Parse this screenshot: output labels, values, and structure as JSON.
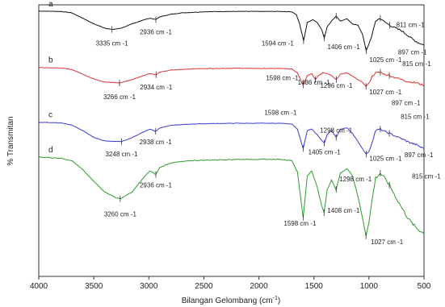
{
  "chart_data": {
    "type": "line",
    "title": "",
    "xlabel": "Bilangan Gelombang (cm",
    "xlabel_sup": "-1",
    "xlabel_close": ")",
    "ylabel": "% Transmitan",
    "xlim": [
      4000,
      500
    ],
    "x_reversed": true,
    "x_ticks": [
      4000,
      3500,
      3000,
      2500,
      2000,
      1500,
      1000,
      500
    ],
    "y_ticks_shown": false,
    "grid": false,
    "legend": "none",
    "series": [
      {
        "label": "a",
        "color": "#111111",
        "points": [
          [
            4000,
            0.98
          ],
          [
            3800,
            0.975
          ],
          [
            3700,
            0.955
          ],
          [
            3600,
            0.88
          ],
          [
            3500,
            0.8
          ],
          [
            3400,
            0.74
          ],
          [
            3335,
            0.72
          ],
          [
            3250,
            0.74
          ],
          [
            3150,
            0.8
          ],
          [
            3050,
            0.855
          ],
          [
            2990,
            0.88
          ],
          [
            2936,
            0.86
          ],
          [
            2900,
            0.9
          ],
          [
            2800,
            0.935
          ],
          [
            2700,
            0.955
          ],
          [
            2500,
            0.97
          ],
          [
            2300,
            0.975
          ],
          [
            2100,
            0.975
          ],
          [
            2000,
            0.975
          ],
          [
            1900,
            0.975
          ],
          [
            1800,
            0.975
          ],
          [
            1700,
            0.97
          ],
          [
            1660,
            0.93
          ],
          [
            1630,
            0.8
          ],
          [
            1594,
            0.56
          ],
          [
            1560,
            0.82
          ],
          [
            1510,
            0.86
          ],
          [
            1470,
            0.82
          ],
          [
            1430,
            0.72
          ],
          [
            1406,
            0.6
          ],
          [
            1380,
            0.76
          ],
          [
            1340,
            0.84
          ],
          [
            1298,
            0.91
          ],
          [
            1260,
            0.84
          ],
          [
            1200,
            0.87
          ],
          [
            1150,
            0.8
          ],
          [
            1100,
            0.78
          ],
          [
            1060,
            0.66
          ],
          [
            1025,
            0.42
          ],
          [
            1000,
            0.52
          ],
          [
            970,
            0.65
          ],
          [
            940,
            0.84
          ],
          [
            897,
            0.88
          ],
          [
            870,
            0.84
          ],
          [
            811,
            0.78
          ],
          [
            760,
            0.74
          ],
          [
            700,
            0.7
          ],
          [
            650,
            0.64
          ],
          [
            600,
            0.58
          ],
          [
            560,
            0.54
          ],
          [
            530,
            0.52
          ],
          [
            500,
            0.5
          ]
        ]
      },
      {
        "label": "b",
        "color": "#e03030",
        "points": [
          [
            4000,
            0.98
          ],
          [
            3800,
            0.97
          ],
          [
            3700,
            0.95
          ],
          [
            3600,
            0.88
          ],
          [
            3500,
            0.81
          ],
          [
            3400,
            0.765
          ],
          [
            3266,
            0.75
          ],
          [
            3150,
            0.8
          ],
          [
            3050,
            0.86
          ],
          [
            2990,
            0.89
          ],
          [
            2934,
            0.87
          ],
          [
            2900,
            0.91
          ],
          [
            2800,
            0.94
          ],
          [
            2600,
            0.96
          ],
          [
            2400,
            0.965
          ],
          [
            2200,
            0.968
          ],
          [
            2000,
            0.965
          ],
          [
            1800,
            0.965
          ],
          [
            1700,
            0.955
          ],
          [
            1650,
            0.9
          ],
          [
            1598,
            0.72
          ],
          [
            1560,
            0.86
          ],
          [
            1520,
            0.89
          ],
          [
            1486,
            0.8
          ],
          [
            1460,
            0.86
          ],
          [
            1420,
            0.9
          ],
          [
            1380,
            0.89
          ],
          [
            1340,
            0.86
          ],
          [
            1296,
            0.8
          ],
          [
            1260,
            0.88
          ],
          [
            1200,
            0.9
          ],
          [
            1150,
            0.85
          ],
          [
            1100,
            0.8
          ],
          [
            1060,
            0.76
          ],
          [
            1027,
            0.7
          ],
          [
            1000,
            0.75
          ],
          [
            970,
            0.85
          ],
          [
            940,
            0.9
          ],
          [
            897,
            0.91
          ],
          [
            860,
            0.88
          ],
          [
            815,
            0.86
          ],
          [
            760,
            0.83
          ],
          [
            700,
            0.8
          ],
          [
            650,
            0.77
          ],
          [
            600,
            0.76
          ],
          [
            560,
            0.75
          ],
          [
            530,
            0.73
          ],
          [
            500,
            0.72
          ]
        ]
      },
      {
        "label": "c",
        "color": "#3a3ad0",
        "points": [
          [
            4000,
            0.98
          ],
          [
            3800,
            0.97
          ],
          [
            3700,
            0.94
          ],
          [
            3600,
            0.86
          ],
          [
            3500,
            0.76
          ],
          [
            3400,
            0.71
          ],
          [
            3248,
            0.7
          ],
          [
            3150,
            0.76
          ],
          [
            3050,
            0.84
          ],
          [
            2990,
            0.88
          ],
          [
            2938,
            0.85
          ],
          [
            2900,
            0.9
          ],
          [
            2800,
            0.935
          ],
          [
            2600,
            0.955
          ],
          [
            2400,
            0.962
          ],
          [
            2200,
            0.965
          ],
          [
            2000,
            0.965
          ],
          [
            1800,
            0.965
          ],
          [
            1700,
            0.955
          ],
          [
            1650,
            0.88
          ],
          [
            1598,
            0.6
          ],
          [
            1560,
            0.86
          ],
          [
            1520,
            0.88
          ],
          [
            1470,
            0.8
          ],
          [
            1430,
            0.72
          ],
          [
            1405,
            0.68
          ],
          [
            1380,
            0.8
          ],
          [
            1340,
            0.86
          ],
          [
            1298,
            0.76
          ],
          [
            1260,
            0.88
          ],
          [
            1200,
            0.9
          ],
          [
            1150,
            0.82
          ],
          [
            1100,
            0.7
          ],
          [
            1060,
            0.6
          ],
          [
            1025,
            0.52
          ],
          [
            1000,
            0.56
          ],
          [
            970,
            0.7
          ],
          [
            940,
            0.86
          ],
          [
            897,
            0.88
          ],
          [
            860,
            0.85
          ],
          [
            815,
            0.82
          ],
          [
            760,
            0.78
          ],
          [
            700,
            0.74
          ],
          [
            650,
            0.7
          ],
          [
            600,
            0.67
          ],
          [
            560,
            0.65
          ],
          [
            530,
            0.62
          ],
          [
            500,
            0.6
          ]
        ]
      },
      {
        "label": "d",
        "color": "#2e9a2e",
        "points": [
          [
            4000,
            0.98
          ],
          [
            3800,
            0.97
          ],
          [
            3700,
            0.95
          ],
          [
            3600,
            0.87
          ],
          [
            3500,
            0.77
          ],
          [
            3400,
            0.68
          ],
          [
            3300,
            0.63
          ],
          [
            3260,
            0.62
          ],
          [
            3150,
            0.68
          ],
          [
            3050,
            0.8
          ],
          [
            2990,
            0.86
          ],
          [
            2936,
            0.83
          ],
          [
            2900,
            0.89
          ],
          [
            2800,
            0.93
          ],
          [
            2600,
            0.95
          ],
          [
            2400,
            0.955
          ],
          [
            2200,
            0.96
          ],
          [
            2000,
            0.96
          ],
          [
            1800,
            0.96
          ],
          [
            1700,
            0.95
          ],
          [
            1650,
            0.85
          ],
          [
            1598,
            0.46
          ],
          [
            1560,
            0.82
          ],
          [
            1520,
            0.86
          ],
          [
            1470,
            0.72
          ],
          [
            1430,
            0.56
          ],
          [
            1408,
            0.5
          ],
          [
            1380,
            0.7
          ],
          [
            1340,
            0.78
          ],
          [
            1298,
            0.7
          ],
          [
            1260,
            0.84
          ],
          [
            1200,
            0.88
          ],
          [
            1150,
            0.82
          ],
          [
            1100,
            0.64
          ],
          [
            1060,
            0.46
          ],
          [
            1027,
            0.3
          ],
          [
            1000,
            0.42
          ],
          [
            970,
            0.62
          ],
          [
            940,
            0.8
          ],
          [
            897,
            0.84
          ],
          [
            860,
            0.8
          ],
          [
            815,
            0.74
          ],
          [
            760,
            0.64
          ],
          [
            700,
            0.54
          ],
          [
            650,
            0.46
          ],
          [
            600,
            0.4
          ],
          [
            560,
            0.36
          ],
          [
            530,
            0.34
          ],
          [
            500,
            0.32
          ]
        ]
      }
    ],
    "annotations": [
      {
        "series": "a",
        "x": 3335,
        "text": "3335 cm -1"
      },
      {
        "series": "a",
        "x": 2936,
        "text": "2936 cm -1"
      },
      {
        "series": "a",
        "x": 1594,
        "text": "1594 cm -1"
      },
      {
        "series": "a",
        "x": 1406,
        "text": "1406 cm -1"
      },
      {
        "series": "a",
        "x": 1298,
        "text": "1298 cm -1"
      },
      {
        "series": "a",
        "x": 897,
        "text": "897 cm -1"
      },
      {
        "series": "a",
        "x": 811,
        "text": "811 cm -1"
      },
      {
        "series": "a",
        "x": 1025,
        "text": "1025 cm -1"
      },
      {
        "series": "b",
        "x": 3266,
        "text": "3266 cm -1"
      },
      {
        "series": "b",
        "x": 2934,
        "text": "2934 cm -1"
      },
      {
        "series": "b",
        "x": 1598,
        "text": "1598 cm -1"
      },
      {
        "series": "b",
        "x": 1486,
        "text": "1486 cm -1"
      },
      {
        "series": "b",
        "x": 1296,
        "text": "1296 cm -1"
      },
      {
        "series": "b",
        "x": 897,
        "text": "897 cm -1"
      },
      {
        "series": "b",
        "x": 815,
        "text": "815 cm -1"
      },
      {
        "series": "b",
        "x": 1027,
        "text": "1027 cm -1"
      },
      {
        "series": "c",
        "x": 3248,
        "text": "3248 cm -1"
      },
      {
        "series": "c",
        "x": 2938,
        "text": "2938 cm -1"
      },
      {
        "series": "c",
        "x": 1598,
        "text": "1598 cm -1"
      },
      {
        "series": "c",
        "x": 1405,
        "text": "1405 cm -1"
      },
      {
        "series": "c",
        "x": 1298,
        "text": "1298 cm -1"
      },
      {
        "series": "c",
        "x": 897,
        "text": "897 cm -1"
      },
      {
        "series": "c",
        "x": 815,
        "text": "815 cm -1"
      },
      {
        "series": "c",
        "x": 1025,
        "text": "1025 cm -1"
      },
      {
        "series": "d",
        "x": 3260,
        "text": "3260 cm -1"
      },
      {
        "series": "d",
        "x": 2936,
        "text": "2936 cm -1"
      },
      {
        "series": "d",
        "x": 1598,
        "text": "1598 cm -1"
      },
      {
        "series": "d",
        "x": 1408,
        "text": "1408 cm -1"
      },
      {
        "series": "d",
        "x": 1298,
        "text": "1298 cm -1"
      },
      {
        "series": "d",
        "x": 897,
        "text": "897 cm -1"
      },
      {
        "series": "d",
        "x": 815,
        "text": "815 cm -1"
      },
      {
        "series": "d",
        "x": 1027,
        "text": "1027 cm -1"
      }
    ]
  }
}
